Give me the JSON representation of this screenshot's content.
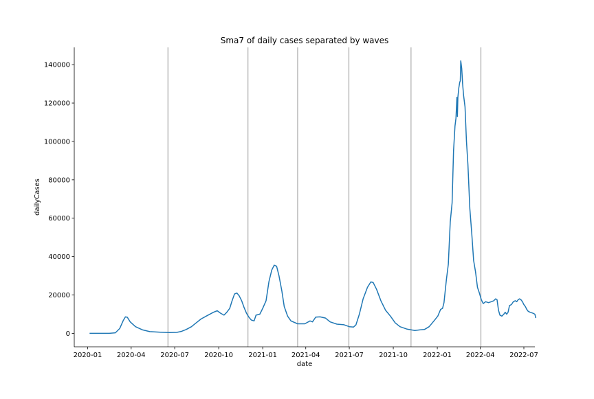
{
  "chart_data": {
    "type": "line",
    "title": "Sma7 of daily cases separated by waves",
    "xlabel": "date",
    "ylabel": "dailyCases",
    "xlim": [
      "2019-12-04",
      "2022-07-24"
    ],
    "ylim": [
      -7000,
      149000
    ],
    "x_ticks": [
      "2020-01",
      "2020-04",
      "2020-07",
      "2020-10",
      "2021-01",
      "2021-04",
      "2021-07",
      "2021-10",
      "2022-01",
      "2022-04",
      "2022-07"
    ],
    "y_ticks": [
      0,
      20000,
      40000,
      60000,
      80000,
      100000,
      120000,
      140000
    ],
    "grid": false,
    "wave_boundaries": [
      "2020-06-17",
      "2020-12-01",
      "2021-03-15",
      "2021-06-30",
      "2021-11-07",
      "2022-04-02"
    ],
    "line_color": "#1f77b4",
    "boundary_color": "#c0c0c0",
    "series": [
      {
        "name": "",
        "points": [
          [
            "2020-01-05",
            0
          ],
          [
            "2020-02-15",
            0
          ],
          [
            "2020-02-28",
            300
          ],
          [
            "2020-03-08",
            2500
          ],
          [
            "2020-03-15",
            6500
          ],
          [
            "2020-03-20",
            8600
          ],
          [
            "2020-03-24",
            8400
          ],
          [
            "2020-03-30",
            6000
          ],
          [
            "2020-04-10",
            3500
          ],
          [
            "2020-04-25",
            1800
          ],
          [
            "2020-05-10",
            900
          ],
          [
            "2020-06-01",
            600
          ],
          [
            "2020-06-20",
            400
          ],
          [
            "2020-07-05",
            500
          ],
          [
            "2020-07-15",
            1000
          ],
          [
            "2020-07-25",
            2000
          ],
          [
            "2020-08-05",
            3500
          ],
          [
            "2020-08-15",
            5500
          ],
          [
            "2020-08-25",
            7500
          ],
          [
            "2020-09-05",
            9000
          ],
          [
            "2020-09-20",
            11000
          ],
          [
            "2020-09-28",
            11800
          ],
          [
            "2020-10-05",
            10500
          ],
          [
            "2020-10-12",
            9500
          ],
          [
            "2020-10-18",
            11000
          ],
          [
            "2020-10-24",
            13000
          ],
          [
            "2020-10-29",
            17000
          ],
          [
            "2020-11-03",
            20500
          ],
          [
            "2020-11-08",
            21000
          ],
          [
            "2020-11-13",
            19500
          ],
          [
            "2020-11-18",
            17000
          ],
          [
            "2020-11-23",
            13500
          ],
          [
            "2020-11-28",
            10500
          ],
          [
            "2020-12-03",
            8500
          ],
          [
            "2020-12-08",
            7000
          ],
          [
            "2020-12-14",
            6500
          ],
          [
            "2020-12-18",
            9500
          ],
          [
            "2020-12-26",
            10000
          ],
          [
            "2021-01-01",
            13000
          ],
          [
            "2021-01-08",
            17000
          ],
          [
            "2021-01-14",
            27000
          ],
          [
            "2021-01-20",
            33000
          ],
          [
            "2021-01-25",
            35500
          ],
          [
            "2021-01-30",
            35000
          ],
          [
            "2021-02-04",
            30000
          ],
          [
            "2021-02-10",
            22000
          ],
          [
            "2021-02-15",
            14000
          ],
          [
            "2021-02-22",
            9000
          ],
          [
            "2021-03-01",
            6500
          ],
          [
            "2021-03-15",
            5000
          ],
          [
            "2021-03-30",
            5000
          ],
          [
            "2021-04-10",
            6500
          ],
          [
            "2021-04-15",
            6000
          ],
          [
            "2021-04-22",
            8500
          ],
          [
            "2021-05-01",
            8600
          ],
          [
            "2021-05-12",
            8000
          ],
          [
            "2021-05-22",
            6000
          ],
          [
            "2021-06-05",
            4800
          ],
          [
            "2021-06-20",
            4500
          ],
          [
            "2021-07-01",
            3500
          ],
          [
            "2021-07-10",
            3300
          ],
          [
            "2021-07-15",
            4500
          ],
          [
            "2021-07-22",
            10000
          ],
          [
            "2021-07-30",
            18000
          ],
          [
            "2021-08-08",
            24000
          ],
          [
            "2021-08-15",
            26800
          ],
          [
            "2021-08-20",
            26500
          ],
          [
            "2021-08-27",
            23000
          ],
          [
            "2021-09-05",
            17000
          ],
          [
            "2021-09-15",
            12000
          ],
          [
            "2021-09-25",
            9000
          ],
          [
            "2021-10-05",
            5500
          ],
          [
            "2021-10-15",
            3500
          ],
          [
            "2021-10-30",
            2200
          ],
          [
            "2021-11-15",
            1500
          ],
          [
            "2021-11-25",
            1800
          ],
          [
            "2021-12-05",
            2000
          ],
          [
            "2021-12-15",
            3500
          ],
          [
            "2021-12-25",
            6500
          ],
          [
            "2022-01-02",
            9000
          ],
          [
            "2022-01-08",
            12500
          ],
          [
            "2022-01-12",
            13000
          ],
          [
            "2022-01-15",
            16000
          ],
          [
            "2022-01-20",
            28000
          ],
          [
            "2022-01-24",
            36000
          ],
          [
            "2022-01-28",
            58000
          ],
          [
            "2022-02-01",
            68000
          ],
          [
            "2022-02-04",
            95000
          ],
          [
            "2022-02-07",
            108000
          ],
          [
            "2022-02-09",
            112000
          ],
          [
            "2022-02-11",
            123000
          ],
          [
            "2022-02-12",
            113000
          ],
          [
            "2022-02-13",
            123000
          ],
          [
            "2022-02-15",
            128000
          ],
          [
            "2022-02-17",
            131000
          ],
          [
            "2022-02-18",
            131500
          ],
          [
            "2022-02-19",
            142000
          ],
          [
            "2022-02-21",
            138000
          ],
          [
            "2022-02-23",
            130000
          ],
          [
            "2022-02-25",
            124000
          ],
          [
            "2022-02-28",
            118000
          ],
          [
            "2022-03-03",
            100000
          ],
          [
            "2022-03-06",
            88000
          ],
          [
            "2022-03-10",
            65000
          ],
          [
            "2022-03-14",
            52000
          ],
          [
            "2022-03-18",
            38000
          ],
          [
            "2022-03-22",
            32000
          ],
          [
            "2022-03-26",
            24000
          ],
          [
            "2022-03-30",
            21000
          ],
          [
            "2022-04-03",
            17500
          ],
          [
            "2022-04-07",
            15500
          ],
          [
            "2022-04-12",
            16500
          ],
          [
            "2022-04-18",
            16000
          ],
          [
            "2022-04-24",
            16500
          ],
          [
            "2022-04-29",
            17000
          ],
          [
            "2022-05-03",
            18000
          ],
          [
            "2022-05-06",
            17500
          ],
          [
            "2022-05-09",
            12000
          ],
          [
            "2022-05-12",
            9500
          ],
          [
            "2022-05-16",
            9000
          ],
          [
            "2022-05-20",
            10000
          ],
          [
            "2022-05-23",
            11000
          ],
          [
            "2022-05-26",
            10000
          ],
          [
            "2022-05-29",
            11000
          ],
          [
            "2022-06-01",
            14500
          ],
          [
            "2022-06-05",
            15000
          ],
          [
            "2022-06-09",
            16500
          ],
          [
            "2022-06-13",
            17000
          ],
          [
            "2022-06-16",
            16500
          ],
          [
            "2022-06-19",
            17500
          ],
          [
            "2022-06-22",
            18000
          ],
          [
            "2022-06-25",
            17500
          ],
          [
            "2022-06-28",
            16500
          ],
          [
            "2022-07-01",
            15000
          ],
          [
            "2022-07-04",
            14000
          ],
          [
            "2022-07-07",
            12500
          ],
          [
            "2022-07-10",
            11500
          ],
          [
            "2022-07-14",
            11000
          ],
          [
            "2022-07-20",
            10500
          ],
          [
            "2022-07-24",
            10000
          ],
          [
            "2022-07-26",
            8000
          ]
        ]
      }
    ]
  }
}
